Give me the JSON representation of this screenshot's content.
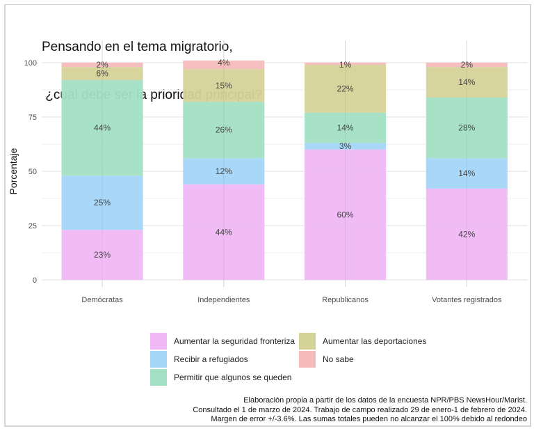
{
  "chart_data": {
    "type": "bar",
    "stacked": true,
    "title": "Pensando en el tema migratorio,\n ¿cuál debe ser la prioridad principal?",
    "title_lines": [
      "Pensando en el tema migratorio,",
      " ¿cuál debe ser la prioridad principal?"
    ],
    "xlabel": "",
    "ylabel": "Porcentaje",
    "ylim": [
      0,
      100
    ],
    "yticks": [
      0,
      25,
      50,
      75,
      100
    ],
    "grid": true,
    "categories": [
      "Demócratas",
      "Independientes",
      "Republicanos",
      "Votantes registrados"
    ],
    "series": [
      {
        "name": "Aumentar la seguridad fronteriza",
        "color": "#f0b8f5",
        "values": [
          23,
          44,
          60,
          42
        ]
      },
      {
        "name": "Recibir a refugiados",
        "color": "#a3d5f7",
        "values": [
          25,
          12,
          3,
          14
        ]
      },
      {
        "name": "Permitir que algunos se queden",
        "color": "#a3e0c3",
        "values": [
          44,
          26,
          14,
          28
        ]
      },
      {
        "name": "Aumentar las deportaciones",
        "color": "#d5d398",
        "values": [
          6,
          15,
          22,
          14
        ]
      },
      {
        "name": "No sabe",
        "color": "#f6bcbc",
        "values": [
          2,
          4,
          1,
          2
        ]
      }
    ],
    "value_suffix": "%",
    "legend_position": "bottom",
    "legend_order": [
      0,
      3,
      1,
      4,
      2
    ]
  },
  "caption": [
    "Elaboración propia a partir de los datos de la encuesta NPR/PBS NewsHour/Marist.",
    "Consultado el 1 de marzo de 2024. Trabajo de campo realizado 29 de enero-1 de febrero de 2024.",
    "Margen de error +/-3.6%. Las sumas totales pueden no alcanzar el 100% debido al redondeo"
  ]
}
